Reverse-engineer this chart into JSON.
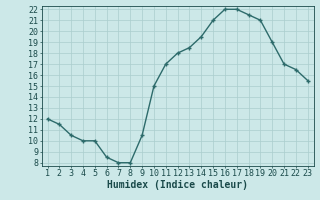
{
  "x": [
    1,
    2,
    3,
    4,
    5,
    6,
    7,
    8,
    9,
    10,
    11,
    12,
    13,
    14,
    15,
    16,
    17,
    18,
    19,
    20,
    21,
    22,
    23
  ],
  "y": [
    12,
    11.5,
    10.5,
    10,
    10,
    8.5,
    8,
    8,
    10.5,
    15,
    17,
    18,
    18.5,
    19.5,
    21,
    22,
    22,
    21.5,
    21,
    19,
    17,
    16.5,
    15.5
  ],
  "line_color": "#2d6b6b",
  "marker_color": "#2d6b6b",
  "bg_color": "#cce8e8",
  "grid_color": "#aacece",
  "xlabel": "Humidex (Indice chaleur)",
  "ylim": [
    8,
    22
  ],
  "xlim": [
    1,
    23
  ],
  "yticks": [
    8,
    9,
    10,
    11,
    12,
    13,
    14,
    15,
    16,
    17,
    18,
    19,
    20,
    21,
    22
  ],
  "xticks": [
    1,
    2,
    3,
    4,
    5,
    6,
    7,
    8,
    9,
    10,
    11,
    12,
    13,
    14,
    15,
    16,
    17,
    18,
    19,
    20,
    21,
    22,
    23
  ],
  "label_color": "#1a4a4a",
  "tick_color": "#1a4a4a",
  "font_size": 6,
  "xlabel_fontsize": 7,
  "line_width": 1.0,
  "marker_size": 2.5
}
